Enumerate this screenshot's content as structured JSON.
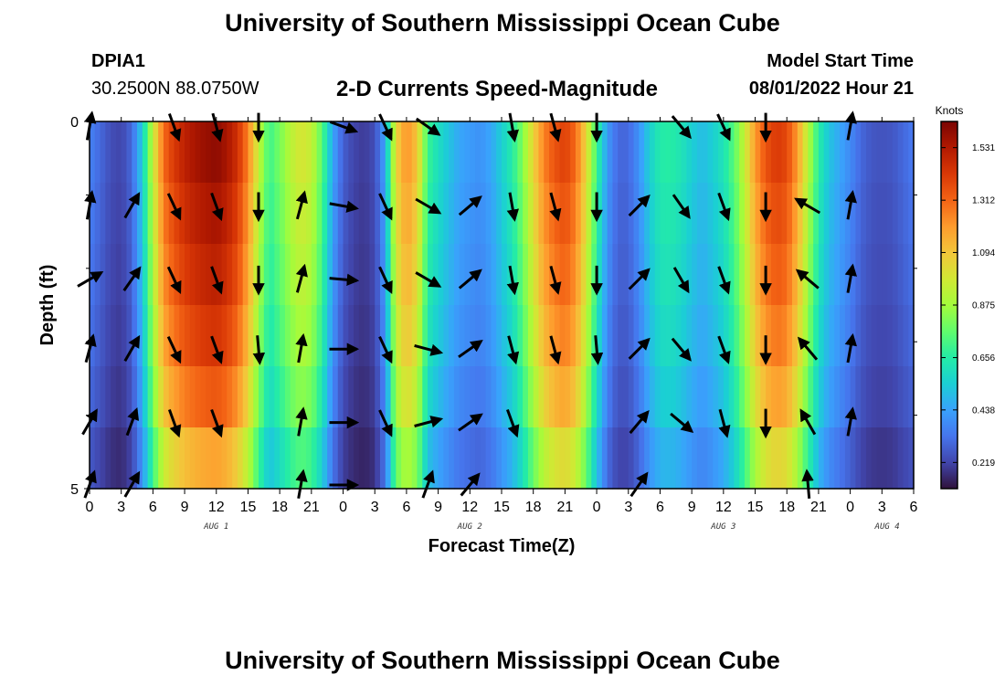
{
  "header": {
    "title": "University of Southern Mississippi Ocean Cube",
    "station_id": "DPIA1",
    "station_coords": "30.2500N  88.0750W",
    "subtitle": "2-D Currents Speed-Magnitude",
    "model_start_label": "Model Start Time",
    "model_start_value": "08/01/2022 Hour 21"
  },
  "footer": {
    "title": "University of Southern Mississippi Ocean Cube"
  },
  "colors": {
    "colormap": [
      "#30123b",
      "#4145ab",
      "#4675ed",
      "#39a2fc",
      "#1bcfd4",
      "#24eca6",
      "#61fc6c",
      "#a4fc3b",
      "#d1e834",
      "#f3c63a",
      "#fe9b2d",
      "#f36315",
      "#d93806",
      "#b11901",
      "#7a0402"
    ],
    "arrow": "#000000"
  },
  "chart_data": {
    "type": "heatmap",
    "xlabel": "Forecast Time(Z)",
    "ylabel": "Depth (ft)",
    "x_range_hours": [
      0,
      78
    ],
    "x_ticks": [
      {
        "h": 0,
        "label": "0"
      },
      {
        "h": 3,
        "label": "3"
      },
      {
        "h": 6,
        "label": "6"
      },
      {
        "h": 9,
        "label": "9"
      },
      {
        "h": 12,
        "label": "12"
      },
      {
        "h": 15,
        "label": "15"
      },
      {
        "h": 18,
        "label": "18"
      },
      {
        "h": 21,
        "label": "21"
      },
      {
        "h": 24,
        "label": "0"
      },
      {
        "h": 27,
        "label": "3"
      },
      {
        "h": 30,
        "label": "6"
      },
      {
        "h": 33,
        "label": "9"
      },
      {
        "h": 36,
        "label": "12"
      },
      {
        "h": 39,
        "label": "15"
      },
      {
        "h": 42,
        "label": "18"
      },
      {
        "h": 45,
        "label": "21"
      },
      {
        "h": 48,
        "label": "0"
      },
      {
        "h": 51,
        "label": "3"
      },
      {
        "h": 54,
        "label": "6"
      },
      {
        "h": 57,
        "label": "9"
      },
      {
        "h": 60,
        "label": "12"
      },
      {
        "h": 63,
        "label": "15"
      },
      {
        "h": 66,
        "label": "18"
      },
      {
        "h": 69,
        "label": "21"
      },
      {
        "h": 72,
        "label": "0"
      },
      {
        "h": 75,
        "label": "3"
      },
      {
        "h": 78,
        "label": "6"
      }
    ],
    "date_labels": [
      {
        "h": 12,
        "label": "AUG 1"
      },
      {
        "h": 36,
        "label": "AUG 2"
      },
      {
        "h": 60,
        "label": "AUG 3"
      },
      {
        "h": 75.5,
        "label": "AUG 4"
      }
    ],
    "y_range": [
      0,
      5
    ],
    "y_ticks": [
      {
        "v": 0,
        "label": "0"
      },
      {
        "v": 5,
        "label": "5"
      }
    ],
    "y_minor_ticks": [
      1,
      2,
      3,
      4
    ],
    "colorbar": {
      "title": "Knots",
      "min": 0.11,
      "max": 1.64,
      "ticks": [
        0.219,
        0.438,
        0.656,
        0.875,
        1.094,
        1.312,
        1.531
      ]
    },
    "depth_layers": 6,
    "speed_profile_knots": [
      {
        "h": 0,
        "s": 0.36
      },
      {
        "h": 1,
        "s": 0.3
      },
      {
        "h": 2,
        "s": 0.24
      },
      {
        "h": 3,
        "s": 0.22
      },
      {
        "h": 4,
        "s": 0.3
      },
      {
        "h": 5,
        "s": 0.55
      },
      {
        "h": 6,
        "s": 0.95
      },
      {
        "h": 7,
        "s": 1.3
      },
      {
        "h": 8,
        "s": 1.42
      },
      {
        "h": 9,
        "s": 1.5
      },
      {
        "h": 10,
        "s": 1.55
      },
      {
        "h": 11,
        "s": 1.58
      },
      {
        "h": 12,
        "s": 1.6
      },
      {
        "h": 13,
        "s": 1.55
      },
      {
        "h": 14,
        "s": 1.45
      },
      {
        "h": 15,
        "s": 1.25
      },
      {
        "h": 16,
        "s": 0.95
      },
      {
        "h": 17,
        "s": 0.7
      },
      {
        "h": 18,
        "s": 0.8
      },
      {
        "h": 19,
        "s": 0.92
      },
      {
        "h": 20,
        "s": 1.0
      },
      {
        "h": 21,
        "s": 0.95
      },
      {
        "h": 22,
        "s": 0.75
      },
      {
        "h": 23,
        "s": 0.45
      },
      {
        "h": 24,
        "s": 0.28
      },
      {
        "h": 25,
        "s": 0.22
      },
      {
        "h": 26,
        "s": 0.2
      },
      {
        "h": 27,
        "s": 0.24
      },
      {
        "h": 28,
        "s": 0.45
      },
      {
        "h": 29,
        "s": 1.05
      },
      {
        "h": 30,
        "s": 1.22
      },
      {
        "h": 31,
        "s": 1.1
      },
      {
        "h": 32,
        "s": 0.7
      },
      {
        "h": 33,
        "s": 0.6
      },
      {
        "h": 34,
        "s": 0.52
      },
      {
        "h": 35,
        "s": 0.45
      },
      {
        "h": 36,
        "s": 0.42
      },
      {
        "h": 37,
        "s": 0.4
      },
      {
        "h": 38,
        "s": 0.45
      },
      {
        "h": 39,
        "s": 0.55
      },
      {
        "h": 40,
        "s": 0.65
      },
      {
        "h": 41,
        "s": 0.82
      },
      {
        "h": 42,
        "s": 1.05
      },
      {
        "h": 43,
        "s": 1.25
      },
      {
        "h": 44,
        "s": 1.35
      },
      {
        "h": 45,
        "s": 1.4
      },
      {
        "h": 46,
        "s": 1.3
      },
      {
        "h": 47,
        "s": 1.05
      },
      {
        "h": 48,
        "s": 0.7
      },
      {
        "h": 49,
        "s": 0.42
      },
      {
        "h": 50,
        "s": 0.3
      },
      {
        "h": 51,
        "s": 0.3
      },
      {
        "h": 52,
        "s": 0.4
      },
      {
        "h": 53,
        "s": 0.55
      },
      {
        "h": 54,
        "s": 0.65
      },
      {
        "h": 55,
        "s": 0.66
      },
      {
        "h": 56,
        "s": 0.62
      },
      {
        "h": 57,
        "s": 0.55
      },
      {
        "h": 58,
        "s": 0.5
      },
      {
        "h": 59,
        "s": 0.55
      },
      {
        "h": 60,
        "s": 0.62
      },
      {
        "h": 61,
        "s": 0.75
      },
      {
        "h": 62,
        "s": 0.95
      },
      {
        "h": 63,
        "s": 1.2
      },
      {
        "h": 64,
        "s": 1.35
      },
      {
        "h": 65,
        "s": 1.42
      },
      {
        "h": 66,
        "s": 1.38
      },
      {
        "h": 67,
        "s": 1.2
      },
      {
        "h": 68,
        "s": 0.92
      },
      {
        "h": 69,
        "s": 0.66
      },
      {
        "h": 70,
        "s": 0.52
      },
      {
        "h": 71,
        "s": 0.45
      },
      {
        "h": 72,
        "s": 0.38
      },
      {
        "h": 73,
        "s": 0.3
      },
      {
        "h": 74,
        "s": 0.26
      },
      {
        "h": 75,
        "s": 0.25
      },
      {
        "h": 76,
        "s": 0.26
      },
      {
        "h": 77,
        "s": 0.3
      },
      {
        "h": 78,
        "s": 0.34
      }
    ],
    "depth_factor": [
      1.0,
      0.97,
      0.94,
      0.9,
      0.84,
      0.74
    ],
    "arrow_rows_depth": [
      0.07,
      1.15,
      2.15,
      3.1,
      4.1,
      4.95
    ],
    "arrows": [
      {
        "h": 0,
        "dir": [
          10,
          10,
          60,
          15,
          30,
          20
        ]
      },
      {
        "h": 4,
        "dir": [
          null,
          30,
          35,
          30,
          20,
          30
        ]
      },
      {
        "h": 8,
        "dir": [
          160,
          155,
          155,
          155,
          160,
          null
        ]
      },
      {
        "h": 12,
        "dir": [
          165,
          160,
          160,
          160,
          160,
          null
        ]
      },
      {
        "h": 16,
        "dir": [
          180,
          180,
          180,
          175,
          null,
          null
        ]
      },
      {
        "h": 20,
        "dir": [
          null,
          15,
          15,
          10,
          10,
          10
        ]
      },
      {
        "h": 24,
        "dir": [
          110,
          100,
          95,
          90,
          90,
          90
        ]
      },
      {
        "h": 28,
        "dir": [
          155,
          155,
          155,
          155,
          155,
          null
        ]
      },
      {
        "h": 32,
        "dir": [
          125,
          120,
          120,
          105,
          75,
          20
        ]
      },
      {
        "h": 36,
        "dir": [
          null,
          50,
          50,
          55,
          55,
          40
        ]
      },
      {
        "h": 40,
        "dir": [
          170,
          170,
          170,
          165,
          160,
          null
        ]
      },
      {
        "h": 44,
        "dir": [
          165,
          165,
          165,
          165,
          null,
          null
        ]
      },
      {
        "h": 48,
        "dir": [
          180,
          180,
          180,
          175,
          null,
          null
        ]
      },
      {
        "h": 52,
        "dir": [
          null,
          45,
          45,
          45,
          40,
          35
        ]
      },
      {
        "h": 56,
        "dir": [
          140,
          145,
          150,
          140,
          130,
          null
        ]
      },
      {
        "h": 60,
        "dir": [
          155,
          160,
          160,
          160,
          165,
          null
        ]
      },
      {
        "h": 64,
        "dir": [
          180,
          180,
          180,
          180,
          180,
          null
        ]
      },
      {
        "h": 68,
        "dir": [
          null,
          300,
          310,
          320,
          330,
          355
        ]
      },
      {
        "h": 72,
        "dir": [
          10,
          10,
          10,
          10,
          10,
          null
        ]
      }
    ]
  }
}
